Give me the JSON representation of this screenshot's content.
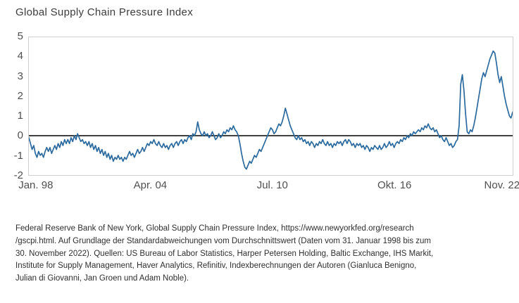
{
  "title": "Global Supply Chain Pressure Index",
  "chart_data": {
    "type": "line",
    "title": "Global Supply Chain Pressure Index",
    "series_name": "Global Supply Chain Pressure Index (Standardabweichungen vom Durchschnittswert)",
    "xlabel": "",
    "ylabel": "",
    "frequency": "monthly",
    "x_range": [
      "Jan. 98",
      "Nov. 22"
    ],
    "ylim": [
      -2,
      5
    ],
    "baseline": 0,
    "grid": false,
    "legend": "none",
    "line_color": "#2b6a9f",
    "zero_line_color": "#000000",
    "frame_color": "#cfcfcf",
    "y_ticks": [
      5,
      4,
      3,
      2,
      1,
      0,
      -1,
      -2
    ],
    "x_ticks": [
      {
        "label": "Jan. 98",
        "month": 0
      },
      {
        "label": "Apr. 04",
        "month": 75
      },
      {
        "label": "Jul. 10",
        "month": 150
      },
      {
        "label": "Okt. 16",
        "month": 225
      },
      {
        "label": "Nov. 22",
        "month": 298
      }
    ],
    "values": [
      -0.1,
      -0.4,
      -0.7,
      -0.5,
      -0.9,
      -1.1,
      -0.8,
      -1.0,
      -0.9,
      -1.1,
      -0.8,
      -0.6,
      -0.8,
      -0.6,
      -0.9,
      -0.7,
      -0.5,
      -0.7,
      -0.4,
      -0.6,
      -0.3,
      -0.5,
      -0.2,
      -0.4,
      -0.2,
      -0.4,
      -0.1,
      -0.3,
      0.0,
      -0.2,
      0.1,
      -0.1,
      -0.3,
      -0.2,
      -0.4,
      -0.3,
      -0.5,
      -0.3,
      -0.6,
      -0.4,
      -0.7,
      -0.5,
      -0.8,
      -0.6,
      -0.9,
      -0.7,
      -1.0,
      -0.8,
      -1.1,
      -0.9,
      -1.2,
      -1.0,
      -1.3,
      -1.1,
      -1.2,
      -1.0,
      -1.2,
      -1.1,
      -1.3,
      -1.1,
      -1.2,
      -1.0,
      -0.8,
      -1.0,
      -0.9,
      -1.1,
      -0.9,
      -0.7,
      -0.9,
      -0.8,
      -0.6,
      -0.8,
      -0.6,
      -0.4,
      -0.5,
      -0.3,
      -0.4,
      -0.2,
      -0.4,
      -0.5,
      -0.3,
      -0.5,
      -0.6,
      -0.4,
      -0.6,
      -0.5,
      -0.7,
      -0.5,
      -0.4,
      -0.6,
      -0.4,
      -0.3,
      -0.5,
      -0.3,
      -0.2,
      -0.4,
      -0.2,
      -0.3,
      -0.1,
      0.0,
      -0.2,
      0.1,
      0.0,
      0.2,
      0.7,
      0.3,
      0.1,
      0.0,
      0.2,
      0.0,
      0.1,
      -0.1,
      0.0,
      0.2,
      0.0,
      -0.2,
      -0.1,
      0.1,
      -0.1,
      0.0,
      0.2,
      0.1,
      0.3,
      0.2,
      0.4,
      0.3,
      0.5,
      0.3,
      0.2,
      0.0,
      -0.4,
      -0.9,
      -1.3,
      -1.6,
      -1.7,
      -1.5,
      -1.3,
      -1.4,
      -1.2,
      -1.0,
      -1.1,
      -0.9,
      -0.7,
      -0.8,
      -0.6,
      -0.4,
      -0.2,
      0.0,
      0.2,
      0.4,
      0.3,
      0.1,
      0.2,
      0.4,
      0.6,
      0.5,
      0.7,
      1.0,
      1.4,
      1.1,
      0.8,
      0.5,
      0.3,
      0.1,
      -0.1,
      -0.2,
      0.0,
      -0.2,
      -0.1,
      -0.3,
      -0.2,
      -0.4,
      -0.3,
      -0.5,
      -0.3,
      -0.4,
      -0.6,
      -0.4,
      -0.5,
      -0.3,
      -0.4,
      -0.2,
      -0.4,
      -0.5,
      -0.3,
      -0.5,
      -0.4,
      -0.6,
      -0.4,
      -0.5,
      -0.3,
      -0.4,
      -0.3,
      -0.5,
      -0.3,
      -0.2,
      -0.4,
      -0.2,
      -0.3,
      -0.5,
      -0.4,
      -0.6,
      -0.4,
      -0.5,
      -0.4,
      -0.6,
      -0.5,
      -0.7,
      -0.5,
      -0.6,
      -0.8,
      -0.6,
      -0.7,
      -0.5,
      -0.6,
      -0.7,
      -0.5,
      -0.7,
      -0.6,
      -0.4,
      -0.6,
      -0.5,
      -0.3,
      -0.5,
      -0.4,
      -0.6,
      -0.4,
      -0.3,
      -0.4,
      -0.2,
      -0.3,
      -0.1,
      -0.2,
      0.0,
      -0.1,
      0.1,
      0.0,
      0.2,
      0.1,
      0.2,
      0.3,
      0.2,
      0.4,
      0.3,
      0.5,
      0.4,
      0.6,
      0.4,
      0.3,
      0.4,
      0.2,
      0.3,
      0.1,
      -0.1,
      0.0,
      -0.2,
      -0.3,
      -0.1,
      -0.3,
      -0.5,
      -0.4,
      -0.6,
      -0.5,
      -0.3,
      -0.2,
      0.5,
      2.6,
      3.1,
      2.3,
      1.1,
      0.2,
      0.1,
      0.3,
      0.2,
      0.5,
      0.9,
      1.4,
      1.9,
      2.4,
      2.9,
      3.2,
      3.0,
      3.3,
      3.6,
      3.9,
      4.1,
      4.3,
      4.2,
      3.7,
      3.1,
      2.7,
      3.0,
      2.5,
      2.0,
      1.6,
      1.3,
      1.0,
      0.9,
      1.2
    ]
  },
  "footer": {
    "lines": [
      "Federal Reserve Bank of New York, Global Supply Chain Pressure Index, https://www.newyorkfed.org/research",
      "/gscpi.html. Auf Grundlage der Standardabweichungen vom Durchschnittswert (Daten vom 31. Januar 1998 bis zum",
      "30. November 2022). Quellen: US Bureau of Labor Statistics, Harper Petersen Holding, Baltic Exchange, IHS Markit,",
      "Institute for Supply Management, Haver Analytics, Refinitiv, Indexberechnungen der Autoren (Gianluca Benigno,",
      "Julian di Giovanni, Jan Groen und Adam Noble)."
    ]
  }
}
